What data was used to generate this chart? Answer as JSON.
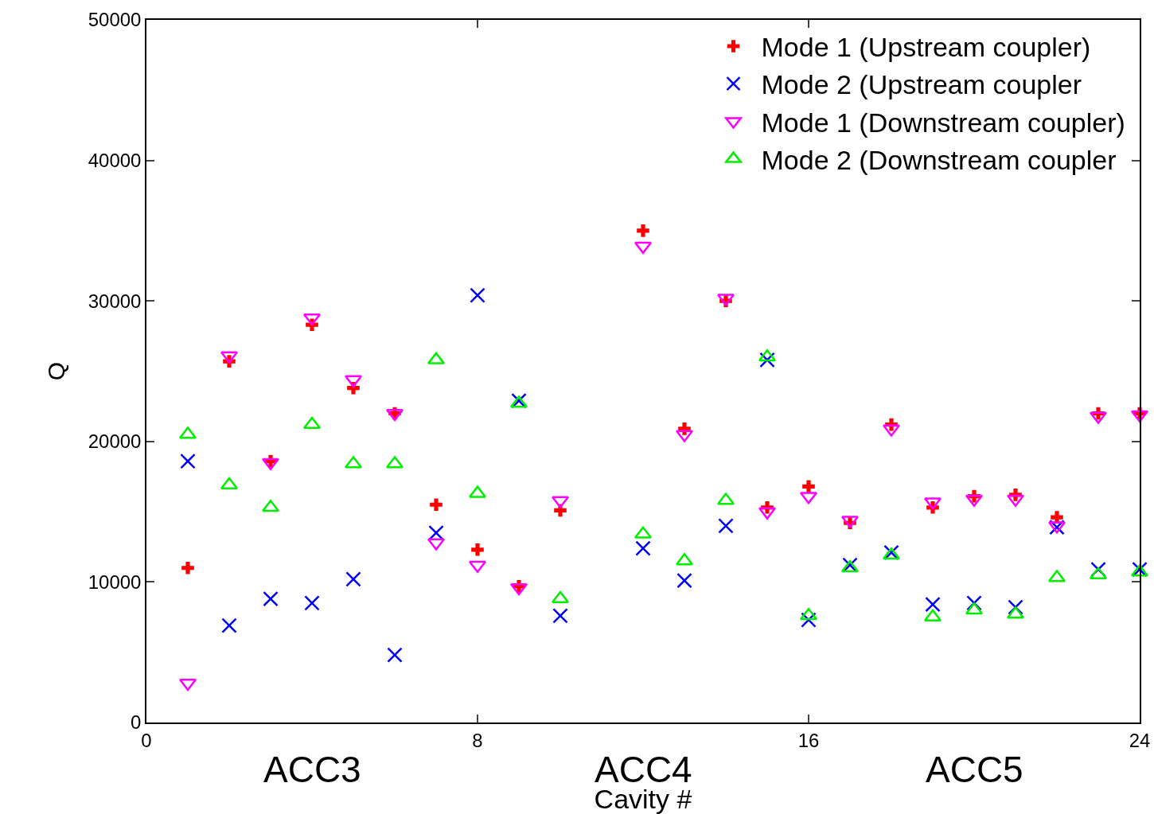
{
  "chart_data": {
    "type": "scatter",
    "xlabel": "Cavity #",
    "ylabel": "Q",
    "x": [
      1,
      2,
      3,
      4,
      5,
      6,
      7,
      8,
      9,
      10,
      12,
      13,
      14,
      15,
      16,
      17,
      18,
      19,
      20,
      21,
      22,
      23,
      24
    ],
    "xlim": [
      0,
      24
    ],
    "xticks": [
      0,
      8,
      16,
      24
    ],
    "ylim": [
      0,
      50000
    ],
    "yticks": [
      0,
      10000,
      20000,
      30000,
      40000,
      50000
    ],
    "grid": false,
    "legend": "top right",
    "annotations": [
      "ACC3",
      "ACC4",
      "ACC5"
    ],
    "series": [
      {
        "name": "Mode 1 (Upstream coupler)",
        "color": "#ff0000",
        "marker": "cross",
        "values": [
          11000,
          25700,
          18600,
          28300,
          23800,
          22000,
          15500,
          12300,
          9700,
          15100,
          35000,
          20900,
          30000,
          15300,
          16800,
          14200,
          21200,
          15300,
          16100,
          16200,
          14600,
          22000,
          22000
        ]
      },
      {
        "name": "Mode 2 (Upstream coupler",
        "color": "#0000ff",
        "marker": "x",
        "values": [
          18600,
          6900,
          8800,
          8500,
          10200,
          4800,
          13500,
          30400,
          22900,
          7600,
          12400,
          10100,
          14000,
          25800,
          7300,
          11200,
          12100,
          8400,
          8500,
          8200,
          13900,
          10900,
          10900
        ]
      },
      {
        "name": "Mode 1 (Downstream coupler)",
        "color": "#ff00ff",
        "marker": "triangle-down",
        "values": [
          2800,
          26100,
          18500,
          28800,
          24400,
          22000,
          12800,
          11200,
          9600,
          15800,
          33900,
          20500,
          30200,
          15000,
          16100,
          14400,
          20900,
          15700,
          15900,
          15900,
          14000,
          21800,
          21900
        ]
      },
      {
        "name": "Mode 2 (Downstream coupler",
        "color": "#00ee00",
        "marker": "triangle",
        "values": [
          20500,
          16900,
          15300,
          21200,
          18400,
          18400,
          25800,
          16300,
          22700,
          8800,
          13400,
          11500,
          15800,
          26000,
          7600,
          11000,
          11900,
          7500,
          8000,
          7700,
          10300,
          10500,
          10700
        ]
      }
    ]
  }
}
